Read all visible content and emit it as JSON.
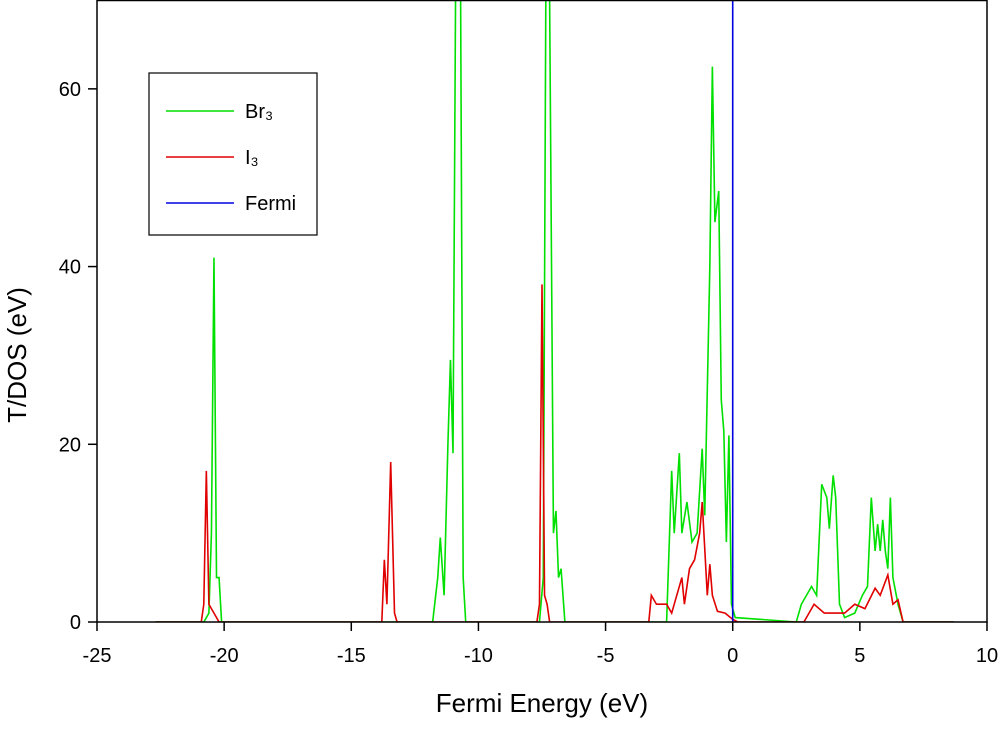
{
  "chart_data": {
    "type": "line",
    "xlabel": "Fermi Energy (eV)",
    "ylabel": "T/DOS (eV)",
    "xlim": [
      -25,
      10
    ],
    "ylim": [
      0,
      70
    ],
    "xticks": [
      -25,
      -20,
      -15,
      -10,
      -5,
      0,
      5,
      10
    ],
    "yticks": [
      0,
      20,
      40,
      60
    ],
    "legend": "upper left",
    "series": [
      {
        "name": "Br₃",
        "color": "#00e000",
        "x": [
          -22.7,
          -20.8,
          -20.6,
          -20.5,
          -20.4,
          -20.3,
          -20.2,
          -20.1,
          -11.8,
          -11.6,
          -11.5,
          -11.35,
          -11.2,
          -11.1,
          -11.0,
          -10.9,
          -10.7,
          -10.6,
          -10.5,
          -7.6,
          -7.45,
          -7.35,
          -7.2,
          -7.05,
          -6.95,
          -6.85,
          -6.75,
          -6.6,
          -2.6,
          -2.4,
          -2.3,
          -2.1,
          -2.0,
          -1.8,
          -1.6,
          -1.4,
          -1.2,
          -1.1,
          -0.9,
          -0.8,
          -0.7,
          -0.55,
          -0.45,
          -0.35,
          -0.25,
          -0.15,
          -0.05,
          0.1,
          2.5,
          2.7,
          2.9,
          3.1,
          3.3,
          3.5,
          3.7,
          3.8,
          3.95,
          4.05,
          4.2,
          4.4,
          4.8,
          5.1,
          5.3,
          5.45,
          5.6,
          5.7,
          5.8,
          5.9,
          6.0,
          6.1,
          6.2,
          6.3,
          6.5,
          6.7,
          8.7
        ],
        "values": [
          0,
          0,
          1,
          10,
          41,
          5,
          5,
          0,
          0,
          5,
          9.5,
          3,
          20,
          29.5,
          19,
          70,
          70,
          5,
          0,
          0,
          5,
          70,
          70,
          10,
          12.5,
          5,
          6,
          0,
          0,
          17,
          10,
          19,
          10,
          13.5,
          9,
          10,
          19.5,
          12,
          40,
          62.5,
          45,
          48.5,
          25,
          21.5,
          9,
          21,
          2,
          0.5,
          0,
          2,
          3,
          4,
          3,
          15.5,
          14,
          10.5,
          16.5,
          14,
          2,
          0.5,
          1,
          3,
          4,
          14,
          8,
          11,
          8,
          11.5,
          8,
          6,
          14,
          5,
          2,
          0,
          0
        ]
      },
      {
        "name": "I₃",
        "color": "#e00000",
        "x": [
          -22.7,
          -20.9,
          -20.8,
          -20.7,
          -20.6,
          -20.4,
          -20.2,
          -13.8,
          -13.7,
          -13.6,
          -13.45,
          -13.3,
          -13.2,
          -7.7,
          -7.6,
          -7.5,
          -7.4,
          -7.3,
          -7.2,
          -3.3,
          -3.2,
          -3.0,
          -2.6,
          -2.4,
          -2.0,
          -1.9,
          -1.7,
          -1.5,
          -1.3,
          -1.2,
          -1.0,
          -0.9,
          -0.8,
          -0.6,
          -0.3,
          0,
          0.2,
          2.8,
          3.0,
          3.2,
          3.6,
          4.4,
          4.8,
          5.2,
          5.6,
          5.8,
          6.1,
          6.3,
          6.5,
          6.7,
          8.7
        ],
        "values": [
          0,
          0,
          2,
          17,
          2,
          1,
          0,
          0,
          7,
          2,
          18,
          1,
          0,
          0,
          2,
          38,
          3,
          2,
          0,
          0,
          3,
          2,
          2,
          1,
          5,
          2,
          6,
          7,
          10,
          13.5,
          3,
          6.5,
          3,
          1.2,
          1,
          0.3,
          0,
          0,
          1,
          2,
          1,
          1,
          2,
          1.5,
          3.8,
          3,
          5.3,
          2,
          2.5,
          0,
          0
        ]
      },
      {
        "name": "Fermi",
        "color": "#0000e0",
        "x": [
          0,
          0
        ],
        "values": [
          0,
          70
        ]
      }
    ]
  }
}
